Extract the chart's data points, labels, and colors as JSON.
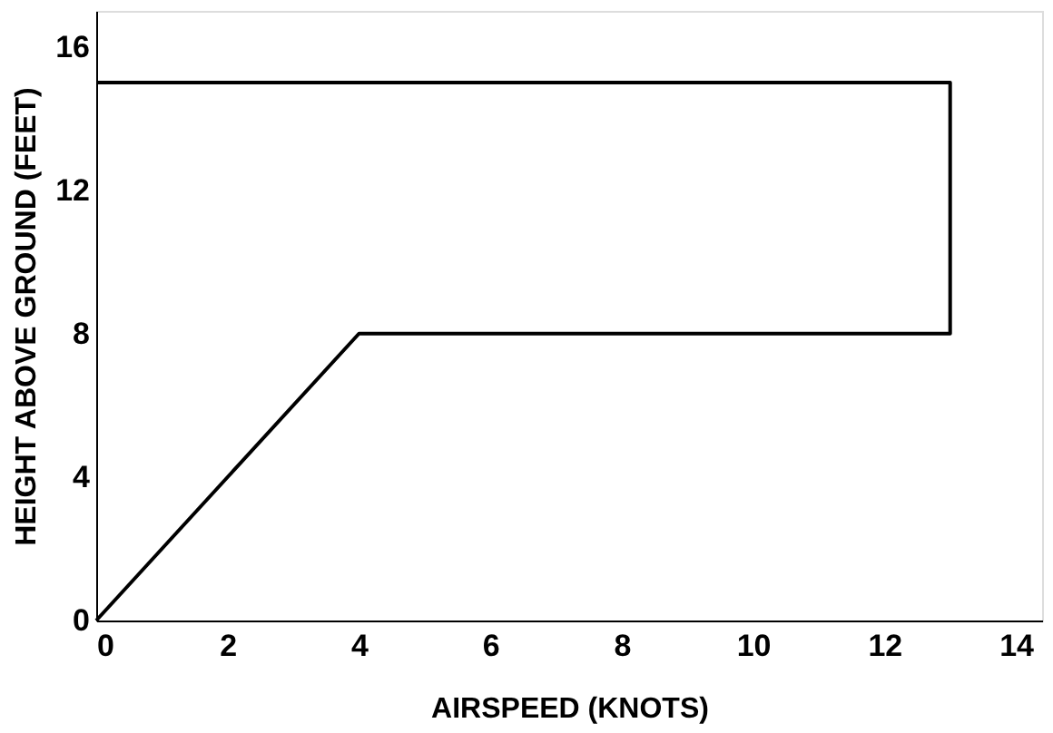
{
  "chart_data": {
    "type": "line",
    "xlabel": "AIRSPEED (KNOTS)",
    "ylabel": "HEIGHT ABOVE GROUND (FEET)",
    "series": [
      {
        "x": [
          0,
          4,
          13,
          13,
          0
        ],
        "values": [
          0,
          8,
          8,
          15,
          15
        ],
        "color": "#000000"
      }
    ],
    "xlim": [
      0,
      14.4
    ],
    "ylim": [
      0,
      17
    ],
    "xticks": [
      0,
      2,
      4,
      6,
      8,
      10,
      12,
      14
    ],
    "yticks": [
      0,
      4,
      8,
      12,
      16
    ],
    "grid": false,
    "marker": "none",
    "line_style": "solid"
  }
}
